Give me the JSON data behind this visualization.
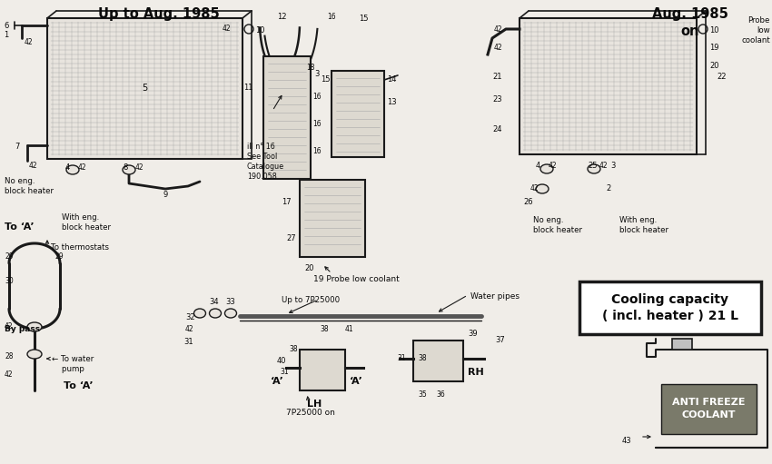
{
  "background_color": "#f0ede8",
  "title_left": "Up to Aug. 1985",
  "title_right": "Aug. 1985\non",
  "probe_low_coolant_top": "Probe\nlow\ncoolant",
  "probe_low_coolant_bottom": "19 Probe low coolant",
  "cooling_capacity_box": "Cooling capacity\n( incl. heater ) 21 L",
  "anti_freeze_label": "ANTI FREEZE\nCOOLANT",
  "bg_color": "#f0ede8",
  "line_color": "#1a1a1a",
  "text_color": "#0a0a0a",
  "box_bg": "#ffffff",
  "jug_label_bg": "#7a7a6a",
  "radiator_fill": "#e8e4de",
  "tank_fill": "#ddd9d0",
  "labels": {
    "no_eng_block_heater_left": "No eng.\nblock heater",
    "with_eng_block_heater_left": "With eng.\nblock heater",
    "to_a_left": "To ‘A’",
    "to_thermostats": "To thermostats",
    "by_pass": "By pass",
    "to_water_pump": "← To water\npump",
    "to_a_bottom": "To ‘A’",
    "water_pipes": "Water pipes",
    "up_to_7p25000": "Up to 7P25000",
    "7p25000_on": "7P25000 on",
    "lh": "LH",
    "rh": "RH",
    "a_left": "‘A’",
    "a_right": "‘A’",
    "no_eng_block_heater_right": "No eng.\nblock heater",
    "with_eng_block_heater_right": "With eng.\nblock heater",
    "ill_no16": "ill n° 16\nSee Tool\nCatalogue\n190.058"
  }
}
